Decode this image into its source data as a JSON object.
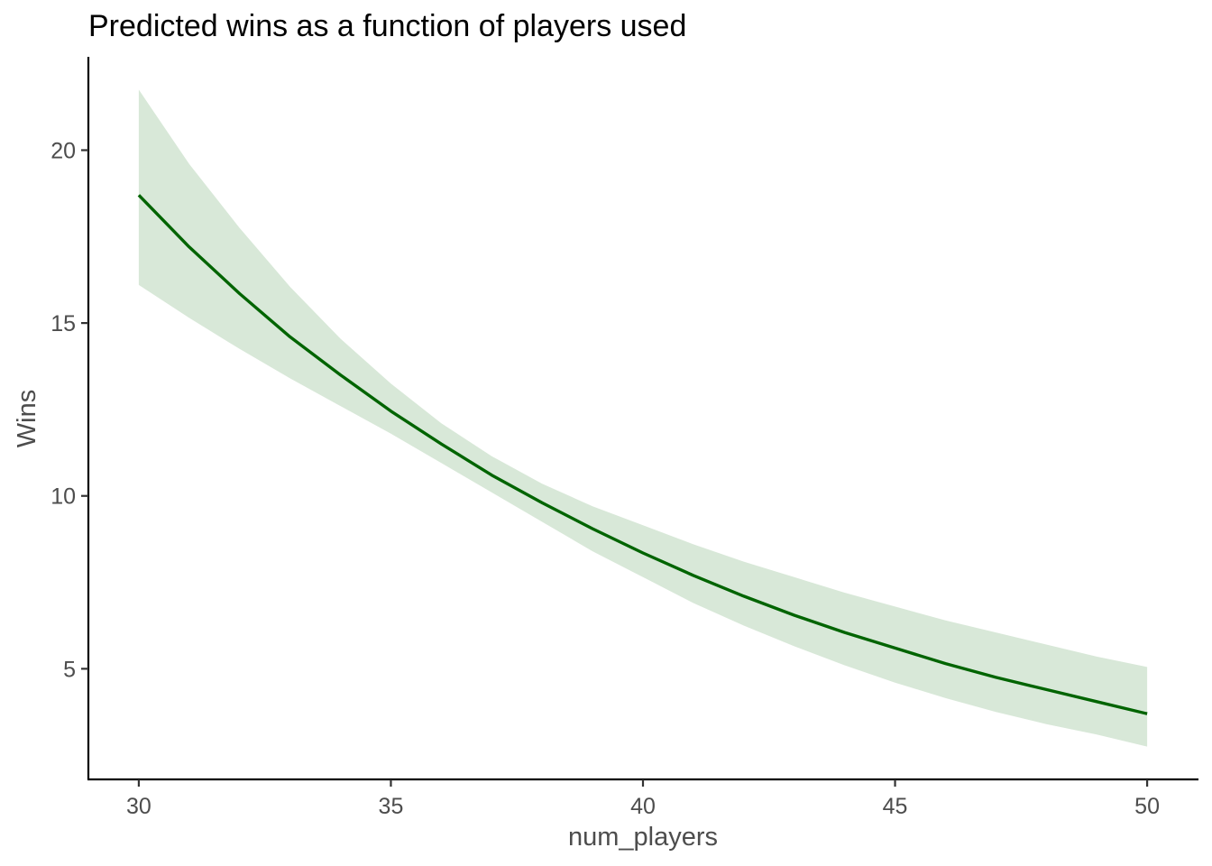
{
  "chart_data": {
    "type": "line",
    "title": "Predicted wins as a function of players used",
    "xlabel": "num_players",
    "ylabel": "Wins",
    "xlim": [
      29,
      51
    ],
    "ylim": [
      1.8,
      22.7
    ],
    "x_ticks": [
      30,
      35,
      40,
      45,
      50
    ],
    "y_ticks": [
      5,
      10,
      15,
      20
    ],
    "grid": false,
    "legend": "none",
    "colors": {
      "line": "#006400",
      "ribbon": "#d8e8d8"
    },
    "series": [
      {
        "x": [
          30,
          31,
          32,
          33,
          34,
          35,
          36,
          37,
          38,
          39,
          40,
          41,
          42,
          43,
          44,
          45,
          46,
          47,
          48,
          49,
          50
        ],
        "values": [
          18.7,
          17.2,
          15.85,
          14.6,
          13.5,
          12.45,
          11.5,
          10.6,
          9.8,
          9.05,
          8.35,
          7.7,
          7.1,
          6.55,
          6.05,
          5.6,
          5.15,
          4.75,
          4.4,
          4.05,
          3.7
        ],
        "lower": [
          16.1,
          15.15,
          14.25,
          13.4,
          12.6,
          11.8,
          10.95,
          10.1,
          9.25,
          8.4,
          7.65,
          6.9,
          6.25,
          5.65,
          5.1,
          4.6,
          4.15,
          3.75,
          3.4,
          3.1,
          2.75
        ],
        "upper": [
          21.75,
          19.6,
          17.75,
          16.05,
          14.55,
          13.25,
          12.1,
          11.15,
          10.35,
          9.7,
          9.15,
          8.6,
          8.1,
          7.65,
          7.2,
          6.8,
          6.4,
          6.05,
          5.7,
          5.35,
          5.05
        ]
      }
    ]
  }
}
